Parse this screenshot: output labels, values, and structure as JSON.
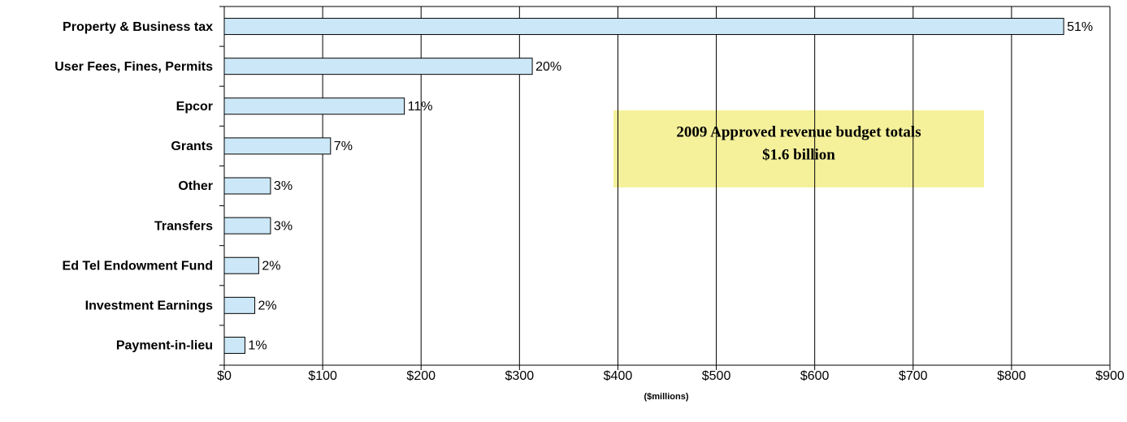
{
  "chart_data": {
    "type": "barh",
    "categories": [
      "Property & Business tax",
      "User Fees, Fines, Permits",
      "Epcor",
      "Grants",
      "Other",
      "Transfers",
      "Ed Tel Endowment Fund",
      "Investment Earnings",
      "Payment-in-lieu"
    ],
    "values": [
      853,
      313,
      183,
      108,
      47,
      47,
      35,
      31,
      21
    ],
    "share_labels": [
      "51%",
      "20%",
      "11%",
      "7%",
      "3%",
      "3%",
      "2%",
      "2%",
      "1%"
    ],
    "color": "#cce8f8",
    "xlabel": "($millions)",
    "xlim": [
      0,
      900
    ],
    "xticks": [
      {
        "value": 0,
        "label": "$0"
      },
      {
        "value": 100,
        "label": "$100"
      },
      {
        "value": 200,
        "label": "$200"
      },
      {
        "value": 300,
        "label": "$300"
      },
      {
        "value": 400,
        "label": "$400"
      },
      {
        "value": 500,
        "label": "$500"
      },
      {
        "value": 600,
        "label": "$600"
      },
      {
        "value": 700,
        "label": "$700"
      },
      {
        "value": 800,
        "label": "$800"
      },
      {
        "value": 900,
        "label": "$900"
      }
    ],
    "grid": true,
    "annotation": [
      "2009 Approved revenue budget totals",
      "$1.6 billion"
    ],
    "annotation_color": "#f5f19b"
  }
}
